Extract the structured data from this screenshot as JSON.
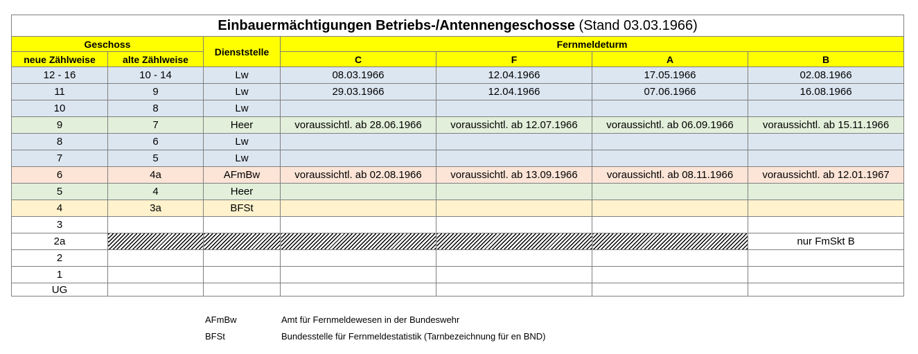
{
  "title": {
    "bold": "Einbauermächtigungen Betriebs-/Antennengeschosse",
    "normal": "(Stand 03.03.1966)"
  },
  "header": {
    "geschoss": "Geschoss",
    "neue": "neue Zählweise",
    "alte": "alte Zählweise",
    "dienststelle": "Dienststelle",
    "fernmeldeturm": "Fernmeldeturm",
    "towers": [
      "C",
      "F",
      "A",
      "B"
    ]
  },
  "rows": [
    {
      "neu": "12 - 16",
      "alt": "10 - 14",
      "dienst": "Lw",
      "c": "08.03.1966",
      "f": "12.04.1966",
      "a": "17.05.1966",
      "b": "02.08.1966",
      "color": "blue"
    },
    {
      "neu": "11",
      "alt": "9",
      "dienst": "Lw",
      "c": "29.03.1966",
      "f": "12.04.1966",
      "a": "07.06.1966",
      "b": "16.08.1966",
      "color": "blue"
    },
    {
      "neu": "10",
      "alt": "8",
      "dienst": "Lw",
      "c": "",
      "f": "",
      "a": "",
      "b": "",
      "color": "blue"
    },
    {
      "neu": "9",
      "alt": "7",
      "dienst": "Heer",
      "c": "voraussichtl. ab 28.06.1966",
      "f": "voraussichtl. ab 12.07.1966",
      "a": "voraussichtl. ab 06.09.1966",
      "b": "voraussichtl. ab 15.11.1966",
      "color": "green"
    },
    {
      "neu": "8",
      "alt": "6",
      "dienst": "Lw",
      "c": "",
      "f": "",
      "a": "",
      "b": "",
      "color": "blue"
    },
    {
      "neu": "7",
      "alt": "5",
      "dienst": "Lw",
      "c": "",
      "f": "",
      "a": "",
      "b": "",
      "color": "blue"
    },
    {
      "neu": "6",
      "alt": "4a",
      "dienst": "AFmBw",
      "c": "voraussichtl. ab 02.08.1966",
      "f": "voraussichtl. ab 13.09.1966",
      "a": "voraussichtl. ab 08.11.1966",
      "b": "voraussichtl. ab 12.01.1967",
      "color": "pink"
    },
    {
      "neu": "5",
      "alt": "4",
      "dienst": "Heer",
      "c": "",
      "f": "",
      "a": "",
      "b": "",
      "color": "green"
    },
    {
      "neu": "4",
      "alt": "3a",
      "dienst": "BFSt",
      "c": "",
      "f": "",
      "a": "",
      "b": "",
      "color": "tan"
    },
    {
      "neu": "3",
      "alt": "",
      "dienst": "",
      "c": "",
      "f": "",
      "a": "",
      "b": "",
      "color": "white"
    },
    {
      "neu": "2a",
      "alt": "",
      "dienst": "",
      "c": "",
      "f": "",
      "a": "",
      "b": "nur FmSkt B",
      "color": "white",
      "hatched": true
    },
    {
      "neu": "2",
      "alt": "",
      "dienst": "",
      "c": "",
      "f": "",
      "a": "",
      "b": "",
      "color": "white"
    },
    {
      "neu": "1",
      "alt": "",
      "dienst": "",
      "c": "",
      "f": "",
      "a": "",
      "b": "",
      "color": "white"
    },
    {
      "neu": "UG",
      "alt": "",
      "dienst": "",
      "c": "",
      "f": "",
      "a": "",
      "b": "",
      "color": "white"
    }
  ],
  "legend": [
    {
      "abbr": "AFmBw",
      "desc": "Amt für Fernmeldewesen in der Bundeswehr"
    },
    {
      "abbr": "BFSt",
      "desc": "Bundesstelle für Fernmeldestatistik (Tarnbezeichnung für en BND)"
    }
  ],
  "colors": {
    "header": "#ffff00",
    "blue": "#dce6f1",
    "green": "#e2efda",
    "pink": "#fce4d6",
    "tan": "#fff2cc",
    "white": "#ffffff"
  }
}
